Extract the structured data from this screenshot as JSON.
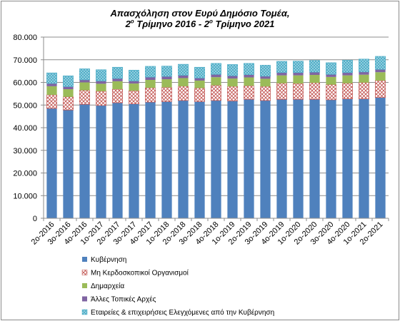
{
  "chart_data": {
    "type": "bar",
    "stacked": true,
    "title": {
      "line1": "Απασχόληση στον Ευρύ Δημόσιο Τομέα,",
      "line2_part1": "2",
      "line2_sup1": "ο",
      "line2_part2": " Τρίμηνο 2016 - 2",
      "line2_sup2": "ο",
      "line2_part3": " Τρίμηνο 2021"
    },
    "ylim": [
      0,
      80000
    ],
    "yticks": [
      "0",
      "10.000",
      "20.000",
      "30.000",
      "40.000",
      "50.000",
      "60.000",
      "70.000",
      "80.000"
    ],
    "ytick_values": [
      0,
      10000,
      20000,
      30000,
      40000,
      50000,
      60000,
      70000,
      80000
    ],
    "grid": true,
    "legend_position": "bottom",
    "categories": [
      "2o-2016",
      "3o-2016",
      "4o-2016",
      "1o-2017",
      "2o-2017",
      "3o-2017",
      "4o-2017",
      "1o-2018",
      "2o-2018",
      "3o-2018",
      "4o-2018",
      "1o-2019",
      "2o-2019",
      "3o-2019",
      "4o-2019",
      "1o-2020",
      "2o-2020",
      "3o-2020",
      "4o-2020",
      "1o-2021",
      "2o-2021"
    ],
    "series": [
      {
        "name": "Κυβέρνηση",
        "color": "#4f81bd",
        "pattern": "solid",
        "values": [
          48500,
          47800,
          50300,
          49800,
          51000,
          50500,
          51300,
          51500,
          52000,
          51500,
          52000,
          51800,
          52500,
          52000,
          52500,
          52500,
          52500,
          52300,
          52700,
          52700,
          53300
        ]
      },
      {
        "name": "Μη Κερδοσκοπικοί Οργανισμοί",
        "color": "#c0504d",
        "pattern": "lattice",
        "values": [
          6000,
          5800,
          6200,
          6300,
          6000,
          5800,
          6300,
          6300,
          6300,
          6000,
          6700,
          6400,
          6000,
          6200,
          7100,
          7000,
          7300,
          6700,
          6900,
          7200,
          7500
        ]
      },
      {
        "name": "Δημαρχεία",
        "color": "#9bbb59",
        "pattern": "solid",
        "values": [
          3800,
          3400,
          3500,
          3300,
          3500,
          3200,
          3500,
          3600,
          3600,
          3300,
          3600,
          3500,
          3700,
          3400,
          3500,
          3600,
          3500,
          3400,
          3500,
          3500,
          3700
        ]
      },
      {
        "name": "Άλλες Τοπικές Αρχές",
        "color": "#8064a2",
        "pattern": "solid",
        "values": [
          1200,
          1100,
          1100,
          1200,
          1200,
          1100,
          1200,
          1200,
          1200,
          1100,
          1200,
          1200,
          1200,
          1100,
          1200,
          1200,
          1200,
          1100,
          1200,
          1200,
          1200
        ]
      },
      {
        "name": "Εταιρείες & επιχειρήσεις Ελεγχόμενες από την Κυβέρνηση",
        "color": "#4bacc6",
        "pattern": "cross",
        "values": [
          4700,
          4800,
          4900,
          5000,
          5000,
          4800,
          4800,
          4600,
          4900,
          4800,
          4900,
          5000,
          5000,
          4900,
          5000,
          5100,
          5200,
          5200,
          5500,
          5700,
          5800
        ]
      }
    ]
  }
}
